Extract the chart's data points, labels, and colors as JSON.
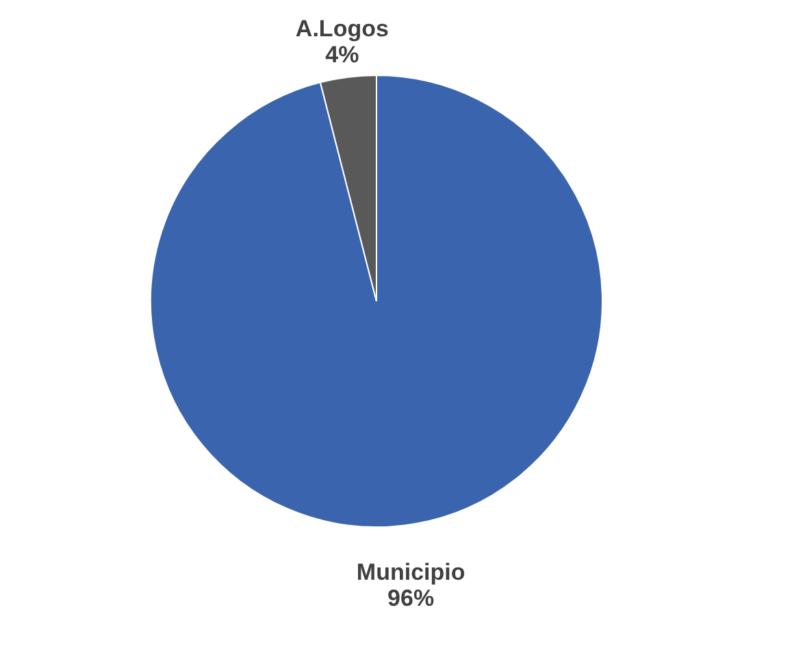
{
  "chart_data": {
    "type": "pie",
    "categories": [
      "Municipio",
      "A.Logos"
    ],
    "values": [
      96,
      4
    ],
    "colors": [
      "#3a64ad",
      "#595959"
    ],
    "value_labels": [
      "96%",
      "4%"
    ],
    "legend": false
  }
}
